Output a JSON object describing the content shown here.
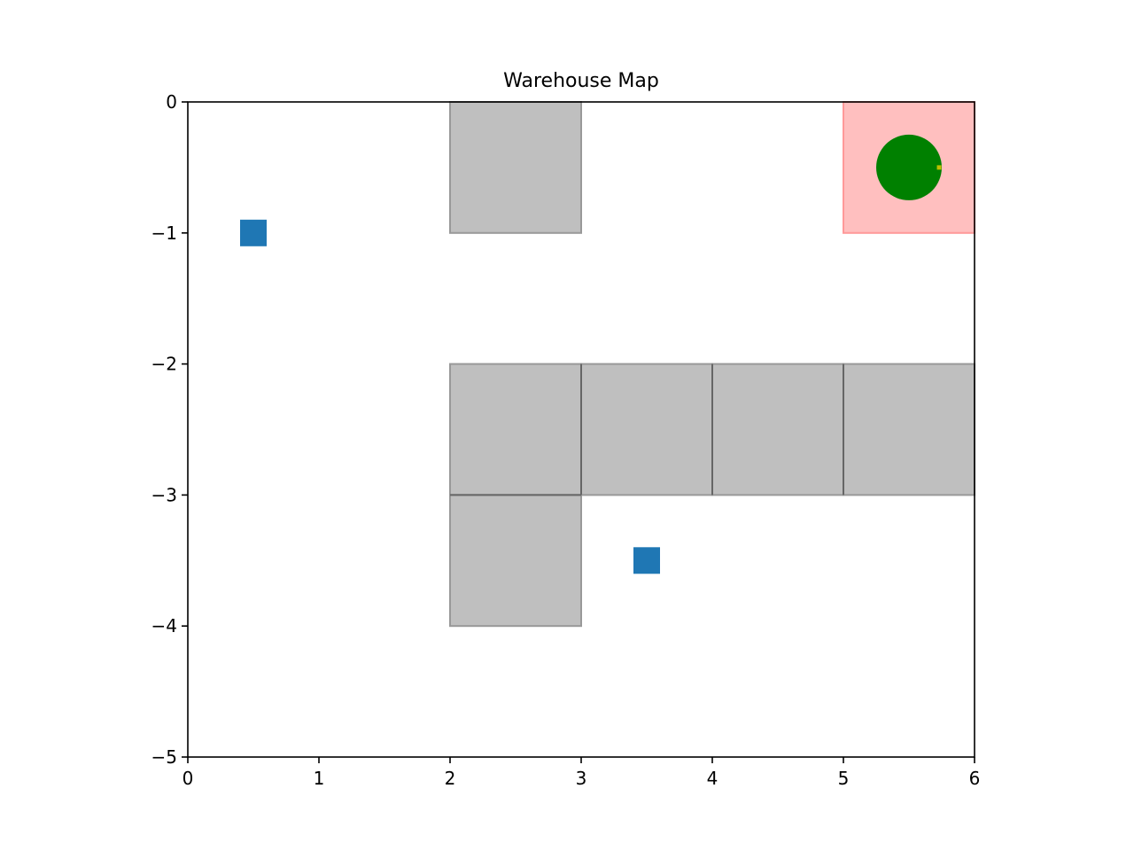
{
  "chart_data": {
    "type": "scatter",
    "title": "Warehouse Map",
    "xlabel": "",
    "ylabel": "",
    "xlim": [
      0,
      6
    ],
    "ylim": [
      -5,
      0
    ],
    "xticks": [
      "0",
      "1",
      "2",
      "3",
      "4",
      "5",
      "6"
    ],
    "yticks": [
      "0",
      "−1",
      "−2",
      "−3",
      "−4",
      "−5"
    ],
    "xtick_values": [
      0,
      1,
      2,
      3,
      4,
      5,
      6
    ],
    "ytick_values": [
      0,
      -1,
      -2,
      -3,
      -4,
      -5
    ],
    "grid": false,
    "shelves": [
      {
        "x": [
          2,
          3
        ],
        "y": [
          -1,
          0
        ]
      },
      {
        "x": [
          2,
          3
        ],
        "y": [
          -3,
          -2
        ]
      },
      {
        "x": [
          3,
          4
        ],
        "y": [
          -3,
          -2
        ]
      },
      {
        "x": [
          4,
          5
        ],
        "y": [
          -3,
          -2
        ]
      },
      {
        "x": [
          5,
          6
        ],
        "y": [
          -3,
          -2
        ]
      },
      {
        "x": [
          2,
          3
        ],
        "y": [
          -4,
          -3
        ]
      }
    ],
    "goal_zone": {
      "x": [
        5,
        6
      ],
      "y": [
        -1,
        0
      ]
    },
    "items": [
      {
        "x": 0.5,
        "y": -1.0
      },
      {
        "x": 3.5,
        "y": -3.5
      }
    ],
    "robot": {
      "x": 5.5,
      "y": -0.5,
      "radius": 0.25,
      "heading_x": 5.73,
      "heading_y": -0.5
    },
    "colors": {
      "shelf_fill": "#bfbfbf",
      "shelf_edge": "#999999",
      "shelf_seam": "#666666",
      "goal_fill": "#ffbfbf",
      "goal_edge": "#ff9999",
      "item": "#1f77b4",
      "robot": "#008000",
      "heading": "#bfbf00",
      "axis": "#000000"
    }
  }
}
